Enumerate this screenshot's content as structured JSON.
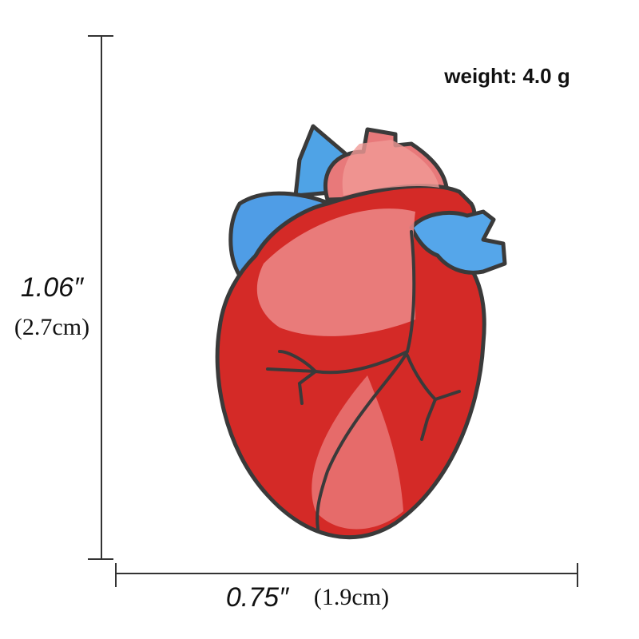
{
  "weight": "weight: 4.0 g",
  "height": {
    "inches": "1.06″",
    "cm": "(2.7cm)"
  },
  "width": {
    "inches": "0.75″",
    "cm": "(1.9cm)"
  }
}
